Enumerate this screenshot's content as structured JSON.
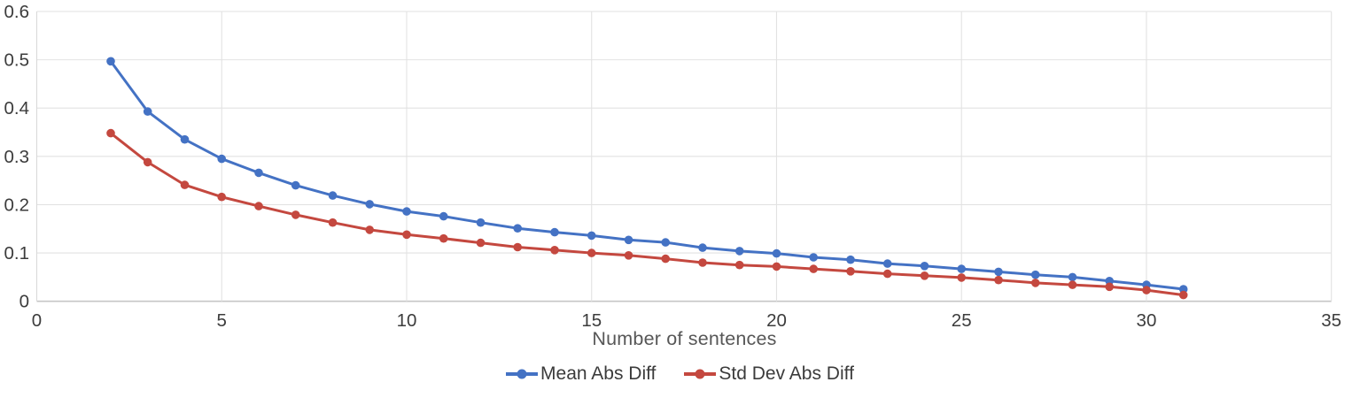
{
  "chart_data": {
    "type": "line",
    "title": "",
    "xlabel": "Number of sentences",
    "ylabel": "",
    "xlim": [
      0,
      35
    ],
    "ylim": [
      0,
      0.6
    ],
    "grid": true,
    "legend_position": "bottom",
    "x_ticks": [
      0,
      5,
      10,
      15,
      20,
      25,
      30,
      35
    ],
    "y_ticks": [
      0,
      0.1,
      0.2,
      0.3,
      0.4,
      0.5,
      0.6
    ],
    "x_tick_labels": [
      "0",
      "5",
      "10",
      "15",
      "20",
      "25",
      "30",
      "35"
    ],
    "y_tick_labels": [
      "0",
      "0.1",
      "0.2",
      "0.3",
      "0.4",
      "0.5",
      "0.6"
    ],
    "x": [
      2,
      3,
      4,
      5,
      6,
      7,
      8,
      9,
      10,
      11,
      12,
      13,
      14,
      15,
      16,
      17,
      18,
      19,
      20,
      21,
      22,
      23,
      24,
      25,
      26,
      27,
      28,
      29,
      30,
      31
    ],
    "series": [
      {
        "name": "Mean Abs Diff",
        "color": "#4472c4",
        "values": [
          0.497,
          0.393,
          0.335,
          0.295,
          0.266,
          0.24,
          0.219,
          0.201,
          0.186,
          0.176,
          0.163,
          0.151,
          0.143,
          0.136,
          0.127,
          0.122,
          0.111,
          0.104,
          0.099,
          0.091,
          0.086,
          0.078,
          0.073,
          0.067,
          0.061,
          0.055,
          0.05,
          0.042,
          0.034,
          0.025
        ]
      },
      {
        "name": "Std Dev Abs Diff",
        "color": "#c4483f",
        "values": [
          0.348,
          0.288,
          0.241,
          0.216,
          0.197,
          0.179,
          0.163,
          0.148,
          0.138,
          0.13,
          0.121,
          0.112,
          0.106,
          0.1,
          0.095,
          0.088,
          0.08,
          0.075,
          0.072,
          0.067,
          0.062,
          0.057,
          0.053,
          0.049,
          0.044,
          0.038,
          0.034,
          0.03,
          0.023,
          0.013
        ]
      }
    ]
  },
  "colors": {
    "gridline": "#e2e2e2",
    "axis_line": "#c6c6c6",
    "plot_border": "#d9d9d9",
    "tick_label": "#3c3c3c",
    "axis_title": "#575757",
    "legend_text": "#3b3b3b"
  }
}
